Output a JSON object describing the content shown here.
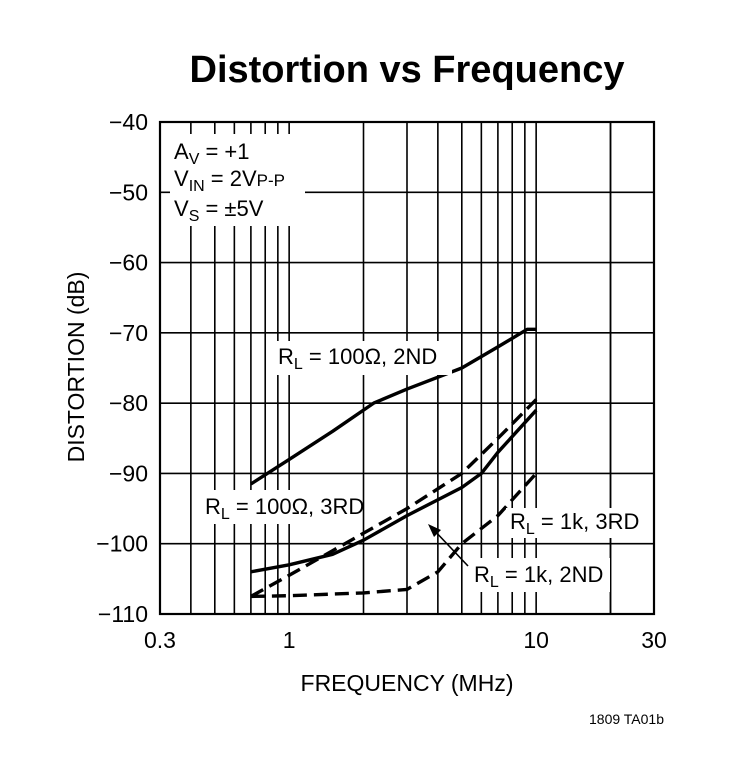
{
  "chart_data": {
    "type": "line",
    "title": "Distortion vs Frequency",
    "xlabel": "FREQUENCY (MHz)",
    "ylabel": "DISTORTION (dB)",
    "x_scale": "log",
    "xlim": [
      0.3,
      30
    ],
    "ylim": [
      -110,
      -40
    ],
    "x_ticks": [
      0.3,
      1,
      10,
      30
    ],
    "x_tick_labels": [
      "0.3",
      "1",
      "10",
      "30"
    ],
    "y_ticks": [
      -40,
      -50,
      -60,
      -70,
      -80,
      -90,
      -100,
      -110
    ],
    "y_tick_labels": [
      "−40",
      "−50",
      "−60",
      "−70",
      "−80",
      "−90",
      "−100",
      "−110"
    ],
    "grid": true,
    "conditions": [
      {
        "main": "A",
        "sub": "V",
        "rest": " = +1"
      },
      {
        "main": "V",
        "sub": "IN",
        "rest": " = 2V",
        "sub2": "P-P"
      },
      {
        "main": "V",
        "sub": "S",
        "rest": " = ±5V"
      }
    ],
    "series": [
      {
        "name_main": "R",
        "name_sub": "L",
        "name_rest": " = 100Ω, 2ND",
        "style": "solid",
        "x": [
          0.7,
          1.0,
          1.5,
          2.2,
          3.0,
          5.0,
          7.0,
          9.2,
          10.0
        ],
        "y": [
          -91.5,
          -88,
          -84,
          -80,
          -78,
          -75,
          -72,
          -69.5,
          -69.5
        ]
      },
      {
        "name_main": "R",
        "name_sub": "L",
        "name_rest": " = 100Ω, 3RD",
        "style": "dashed",
        "x": [
          0.7,
          1.0,
          1.5,
          2.0,
          3.0,
          5.0,
          7.0,
          10.0
        ],
        "y": [
          -107.5,
          -104.5,
          -101,
          -98.5,
          -95,
          -90,
          -85,
          -79.5
        ]
      },
      {
        "name_main": "R",
        "name_sub": "L",
        "name_rest": " = 1k, 2ND",
        "style": "solid",
        "x": [
          0.7,
          1.0,
          1.5,
          2.0,
          3.0,
          5.0,
          6.0,
          7.0,
          10.0
        ],
        "y": [
          -104,
          -103,
          -101.5,
          -99.5,
          -96,
          -92,
          -90,
          -87,
          -81
        ]
      },
      {
        "name_main": "R",
        "name_sub": "L",
        "name_rest": " = 1k, 3RD",
        "style": "dashed",
        "x": [
          0.7,
          1.0,
          2.0,
          3.0,
          4.0,
          5.0,
          7.0,
          10.0
        ],
        "y": [
          -107.5,
          -107.4,
          -107,
          -106.5,
          -104,
          -100,
          -96,
          -90
        ]
      }
    ],
    "figure_id": "1809 TA01b"
  }
}
